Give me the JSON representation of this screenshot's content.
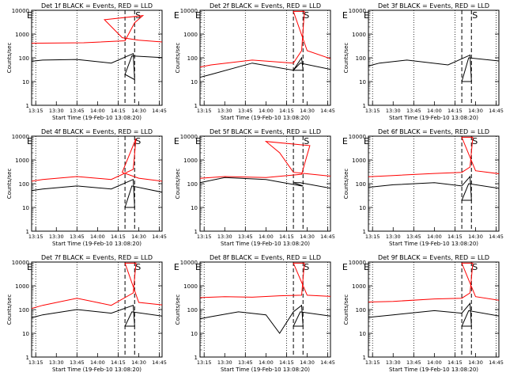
{
  "chart_data": {
    "type": "line",
    "layout": "3x3 grid",
    "x_axis_label": "Start Time (19-Feb-10 13:08:20)",
    "y_axis_label": "Counts/sec",
    "y_scale": "log",
    "ylim": [
      1,
      10000
    ],
    "y_ticks": [
      "1",
      "10",
      "100",
      "1000",
      "10000"
    ],
    "x_ticks": [
      "13:15",
      "13:30",
      "13:45",
      "14:00",
      "14:15",
      "14:30",
      "14:45"
    ],
    "xlim_minutes": [
      13.0,
      14.77
    ],
    "marker_labels": [
      "E",
      "S",
      "E"
    ],
    "legend_series": [
      {
        "name": "Events",
        "color": "#000000"
      },
      {
        "name": "LLD",
        "color": "#ff0000"
      }
    ],
    "panels": [
      {
        "title": "Det 1f BLACK = Events, RED = LLD",
        "markers": [
          13.08,
          13.87,
          14.2,
          14.55
        ],
        "red": [
          [
            13.0,
            400
          ],
          [
            13.5,
            430
          ],
          [
            13.8,
            520
          ],
          [
            13.87,
            3000
          ],
          [
            13.93,
            6000
          ],
          [
            14.05,
            4000
          ],
          [
            14.18,
            700
          ],
          [
            14.3,
            550
          ],
          [
            14.5,
            450
          ],
          [
            14.77,
            420
          ]
        ],
        "black": [
          [
            13.0,
            60
          ],
          [
            13.2,
            80
          ],
          [
            13.45,
            85
          ],
          [
            13.7,
            60
          ],
          [
            13.86,
            150
          ],
          [
            13.87,
            12
          ],
          [
            14.2,
            20
          ],
          [
            14.25,
            120
          ],
          [
            14.5,
            100
          ],
          [
            14.77,
            50
          ]
        ]
      },
      {
        "title": "Det 2f BLACK = Events, RED = LLD",
        "markers": [
          13.08,
          13.87,
          14.2,
          14.55
        ],
        "red": [
          [
            13.0,
            30
          ],
          [
            13.2,
            50
          ],
          [
            13.5,
            80
          ],
          [
            13.8,
            60
          ],
          [
            13.86,
            200
          ],
          [
            13.88,
            9000
          ],
          [
            14.2,
            9000
          ],
          [
            14.3,
            200
          ],
          [
            14.5,
            80
          ],
          [
            14.77,
            30
          ]
        ],
        "black": [
          [
            13.0,
            10
          ],
          [
            13.2,
            20
          ],
          [
            13.5,
            60
          ],
          [
            13.8,
            30
          ],
          [
            13.86,
            100
          ],
          [
            13.87,
            30
          ],
          [
            14.2,
            30
          ],
          [
            14.25,
            60
          ],
          [
            14.5,
            30
          ],
          [
            14.77,
            5
          ]
        ]
      },
      {
        "title": "Det 3f BLACK = Events, RED = LLD",
        "markers": [
          13.08,
          13.87,
          14.2,
          14.55
        ],
        "red": [],
        "black": [
          [
            13.0,
            30
          ],
          [
            13.2,
            60
          ],
          [
            13.4,
            80
          ],
          [
            13.7,
            50
          ],
          [
            13.86,
            130
          ],
          [
            13.87,
            10
          ],
          [
            14.2,
            10
          ],
          [
            14.25,
            100
          ],
          [
            14.5,
            70
          ],
          [
            14.77,
            20
          ]
        ]
      },
      {
        "title": "Det 4f BLACK = Events, RED = LLD",
        "markers": [
          13.08,
          13.87,
          14.2,
          14.55
        ],
        "red": [
          [
            13.0,
            100
          ],
          [
            13.2,
            150
          ],
          [
            13.45,
            200
          ],
          [
            13.7,
            150
          ],
          [
            13.86,
            400
          ],
          [
            13.88,
            8000
          ],
          [
            14.18,
            300
          ],
          [
            14.3,
            170
          ],
          [
            14.5,
            120
          ],
          [
            14.77,
            90
          ]
        ],
        "black": [
          [
            13.0,
            40
          ],
          [
            13.2,
            60
          ],
          [
            13.45,
            80
          ],
          [
            13.7,
            60
          ],
          [
            13.86,
            150
          ],
          [
            13.87,
            10
          ],
          [
            14.2,
            10
          ],
          [
            14.25,
            80
          ],
          [
            14.5,
            40
          ],
          [
            14.77,
            30
          ]
        ]
      },
      {
        "title": "Det 5f BLACK = Events, RED = LLD",
        "markers": [
          13.08,
          13.87,
          14.2,
          14.55
        ],
        "red": [
          [
            13.0,
            150
          ],
          [
            13.3,
            200
          ],
          [
            13.6,
            180
          ],
          [
            13.86,
            250
          ],
          [
            13.92,
            4000
          ],
          [
            14.0,
            6000
          ],
          [
            14.1,
            2000
          ],
          [
            14.2,
            300
          ],
          [
            14.5,
            200
          ],
          [
            14.77,
            180
          ]
        ],
        "black": [
          [
            13.0,
            80
          ],
          [
            13.3,
            180
          ],
          [
            13.6,
            150
          ],
          [
            13.86,
            80
          ],
          [
            13.87,
            80
          ],
          [
            14.2,
            110
          ],
          [
            14.25,
            110
          ],
          [
            14.5,
            60
          ],
          [
            14.77,
            40
          ]
        ]
      },
      {
        "title": "Det 6f BLACK = Events, RED = LLD",
        "markers": [
          13.08,
          13.87,
          14.2,
          14.55
        ],
        "red": [
          [
            13.0,
            180
          ],
          [
            13.3,
            220
          ],
          [
            13.6,
            270
          ],
          [
            13.8,
            300
          ],
          [
            13.86,
            500
          ],
          [
            13.88,
            9000
          ],
          [
            14.2,
            9000
          ],
          [
            14.3,
            350
          ],
          [
            14.5,
            250
          ],
          [
            14.77,
            200
          ]
        ],
        "black": [
          [
            13.0,
            60
          ],
          [
            13.3,
            90
          ],
          [
            13.6,
            110
          ],
          [
            13.8,
            80
          ],
          [
            13.86,
            200
          ],
          [
            13.87,
            20
          ],
          [
            14.2,
            20
          ],
          [
            14.25,
            100
          ],
          [
            14.5,
            60
          ],
          [
            14.77,
            30
          ]
        ]
      },
      {
        "title": "Det 7f BLACK = Events, RED = LLD",
        "markers": [
          13.08,
          13.87,
          14.2,
          14.55
        ],
        "red": [
          [
            13.0,
            70
          ],
          [
            13.2,
            150
          ],
          [
            13.45,
            300
          ],
          [
            13.7,
            150
          ],
          [
            13.86,
            500
          ],
          [
            13.88,
            9000
          ],
          [
            14.2,
            9000
          ],
          [
            14.3,
            200
          ],
          [
            14.5,
            150
          ],
          [
            14.77,
            90
          ]
        ],
        "black": [
          [
            13.0,
            30
          ],
          [
            13.2,
            60
          ],
          [
            13.45,
            100
          ],
          [
            13.7,
            70
          ],
          [
            13.86,
            150
          ],
          [
            13.87,
            20
          ],
          [
            14.2,
            20
          ],
          [
            14.25,
            80
          ],
          [
            14.5,
            50
          ],
          [
            14.77,
            30
          ]
        ]
      },
      {
        "title": "Det 8f BLACK = Events, RED = LLD",
        "markers": [
          13.08,
          13.87,
          14.2,
          14.55
        ],
        "red": [
          [
            13.0,
            300
          ],
          [
            13.3,
            350
          ],
          [
            13.5,
            330
          ],
          [
            13.7,
            380
          ],
          [
            13.86,
            400
          ],
          [
            13.88,
            9000
          ],
          [
            14.2,
            9000
          ],
          [
            14.3,
            400
          ],
          [
            14.5,
            350
          ],
          [
            14.77,
            320
          ]
        ],
        "black": [
          [
            13.0,
            30
          ],
          [
            13.2,
            50
          ],
          [
            13.4,
            80
          ],
          [
            13.6,
            60
          ],
          [
            13.7,
            10
          ],
          [
            13.8,
            80
          ],
          [
            13.86,
            150
          ],
          [
            13.87,
            20
          ],
          [
            14.2,
            20
          ],
          [
            14.25,
            80
          ],
          [
            14.5,
            50
          ],
          [
            14.77,
            25
          ]
        ]
      },
      {
        "title": "Det 9f BLACK = Events, RED = LLD",
        "markers": [
          13.08,
          13.87,
          14.2,
          14.55
        ],
        "red": [
          [
            13.0,
            200
          ],
          [
            13.3,
            220
          ],
          [
            13.6,
            280
          ],
          [
            13.8,
            300
          ],
          [
            13.86,
            500
          ],
          [
            13.88,
            9000
          ],
          [
            14.2,
            9000
          ],
          [
            14.3,
            350
          ],
          [
            14.5,
            230
          ],
          [
            14.77,
            200
          ]
        ],
        "black": [
          [
            13.0,
            40
          ],
          [
            13.3,
            60
          ],
          [
            13.6,
            90
          ],
          [
            13.8,
            70
          ],
          [
            13.86,
            180
          ],
          [
            13.87,
            20
          ],
          [
            14.2,
            20
          ],
          [
            14.25,
            90
          ],
          [
            14.5,
            50
          ],
          [
            14.77,
            35
          ]
        ]
      }
    ]
  }
}
